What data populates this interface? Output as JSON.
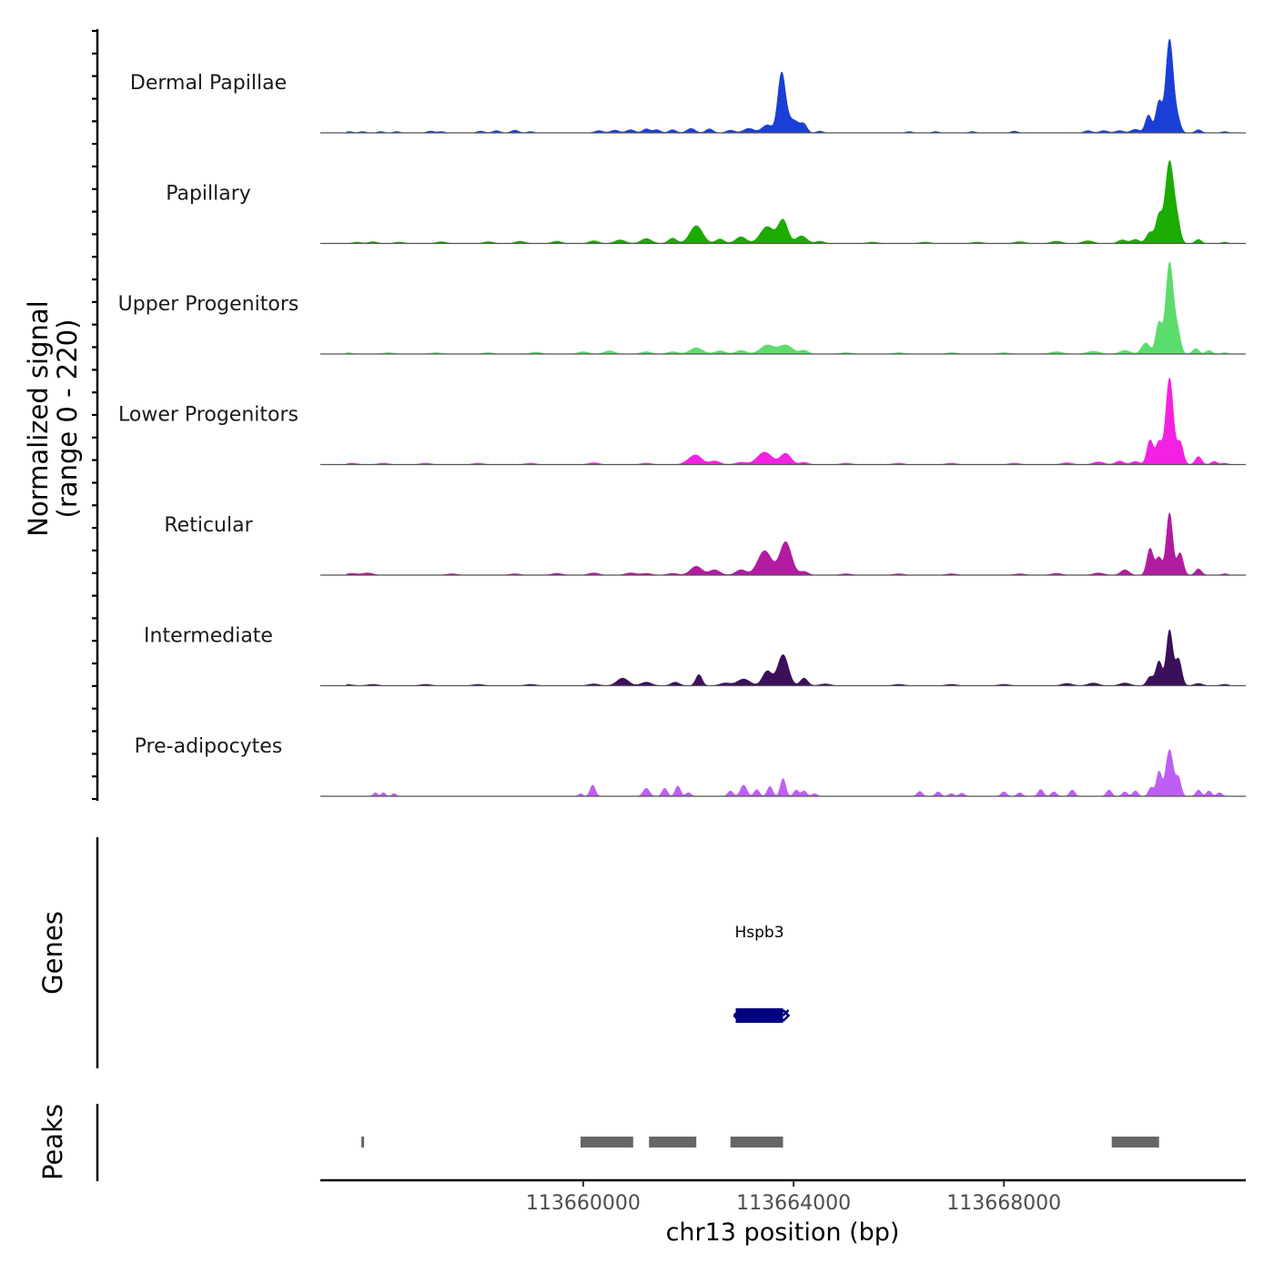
{
  "chart_data": {
    "type": "area",
    "chromosome": "chr13",
    "xlabel": "chr13 position (bp)",
    "xlim": [
      113655000,
      113672600
    ],
    "x_ticks": [
      113660000,
      113664000,
      113668000
    ],
    "x_tick_labels": [
      "113660000",
      "113664000",
      "113668000"
    ],
    "ylabel_line1": "Normalized signal",
    "ylabel_line2": "(range 0 - 220)",
    "ylim": [
      0,
      220
    ],
    "genes_label": "Genes",
    "peaks_label": "Peaks",
    "series": [
      {
        "name": "Dermal Papillae",
        "color": "#1a3fd6",
        "peaks": [
          [
            113655550,
            3,
            60
          ],
          [
            113655800,
            3,
            60
          ],
          [
            113656150,
            3,
            60
          ],
          [
            113656450,
            3,
            60
          ],
          [
            113657100,
            4,
            70
          ],
          [
            113657300,
            3,
            60
          ],
          [
            113658050,
            4,
            70
          ],
          [
            113658350,
            5,
            70
          ],
          [
            113658700,
            6,
            70
          ],
          [
            113659000,
            3,
            60
          ],
          [
            113660300,
            5,
            80
          ],
          [
            113660600,
            6,
            80
          ],
          [
            113660900,
            7,
            80
          ],
          [
            113661200,
            9,
            70
          ],
          [
            113661400,
            7,
            70
          ],
          [
            113661700,
            7,
            70
          ],
          [
            113662050,
            10,
            80
          ],
          [
            113662400,
            9,
            70
          ],
          [
            113662800,
            6,
            80
          ],
          [
            113663150,
            10,
            100
          ],
          [
            113663500,
            18,
            100
          ],
          [
            113663770,
            130,
            70
          ],
          [
            113663900,
            25,
            80
          ],
          [
            113664050,
            22,
            80
          ],
          [
            113664200,
            18,
            60
          ],
          [
            113664500,
            4,
            60
          ],
          [
            113666200,
            3,
            60
          ],
          [
            113666700,
            3,
            60
          ],
          [
            113667400,
            3,
            60
          ],
          [
            113668200,
            4,
            60
          ],
          [
            113669600,
            5,
            70
          ],
          [
            113669900,
            5,
            80
          ],
          [
            113670200,
            5,
            80
          ],
          [
            113670500,
            8,
            80
          ],
          [
            113670750,
            40,
            60
          ],
          [
            113670950,
            70,
            60
          ],
          [
            113671150,
            210,
            70
          ],
          [
            113671300,
            30,
            60
          ],
          [
            113671700,
            7,
            60
          ],
          [
            113672200,
            3,
            60
          ]
        ]
      },
      {
        "name": "Papillary",
        "color": "#1cab00",
        "peaks": [
          [
            113655700,
            3,
            80
          ],
          [
            113656000,
            4,
            80
          ],
          [
            113656500,
            3,
            90
          ],
          [
            113657300,
            4,
            90
          ],
          [
            113658200,
            4,
            90
          ],
          [
            113658800,
            5,
            90
          ],
          [
            113659500,
            5,
            90
          ],
          [
            113660200,
            6,
            90
          ],
          [
            113660700,
            8,
            100
          ],
          [
            113661200,
            11,
            100
          ],
          [
            113661700,
            12,
            80
          ],
          [
            113662150,
            40,
            120
          ],
          [
            113662600,
            10,
            80
          ],
          [
            113663000,
            15,
            100
          ],
          [
            113663500,
            38,
            130
          ],
          [
            113663800,
            52,
            90
          ],
          [
            113664150,
            17,
            100
          ],
          [
            113664500,
            5,
            80
          ],
          [
            113665500,
            3,
            100
          ],
          [
            113666500,
            3,
            100
          ],
          [
            113667500,
            3,
            100
          ],
          [
            113668300,
            4,
            100
          ],
          [
            113669000,
            5,
            100
          ],
          [
            113669600,
            6,
            100
          ],
          [
            113670250,
            8,
            80
          ],
          [
            113670500,
            9,
            80
          ],
          [
            113670780,
            25,
            70
          ],
          [
            113670950,
            60,
            60
          ],
          [
            113671150,
            185,
            80
          ],
          [
            113671300,
            40,
            60
          ],
          [
            113671700,
            9,
            60
          ],
          [
            113672200,
            3,
            60
          ]
        ]
      },
      {
        "name": "Upper Progenitors",
        "color": "#5ddc6e",
        "peaks": [
          [
            113655500,
            3,
            100
          ],
          [
            113656300,
            3,
            100
          ],
          [
            113657200,
            3,
            100
          ],
          [
            113658200,
            3,
            100
          ],
          [
            113659100,
            4,
            100
          ],
          [
            113660000,
            5,
            100
          ],
          [
            113660500,
            7,
            100
          ],
          [
            113661200,
            5,
            100
          ],
          [
            113661700,
            5,
            100
          ],
          [
            113662150,
            14,
            120
          ],
          [
            113662600,
            7,
            100
          ],
          [
            113663000,
            8,
            100
          ],
          [
            113663500,
            20,
            130
          ],
          [
            113663850,
            20,
            130
          ],
          [
            113664200,
            8,
            80
          ],
          [
            113665000,
            3,
            100
          ],
          [
            113666000,
            3,
            100
          ],
          [
            113667000,
            3,
            100
          ],
          [
            113668000,
            3,
            100
          ],
          [
            113669000,
            5,
            120
          ],
          [
            113669700,
            6,
            120
          ],
          [
            113670300,
            8,
            100
          ],
          [
            113670700,
            25,
            80
          ],
          [
            113670950,
            70,
            60
          ],
          [
            113671150,
            205,
            70
          ],
          [
            113671300,
            50,
            60
          ],
          [
            113671650,
            12,
            60
          ],
          [
            113671900,
            8,
            60
          ],
          [
            113672200,
            3,
            60
          ]
        ]
      },
      {
        "name": "Lower Progenitors",
        "color": "#f421e3",
        "peaks": [
          [
            113655600,
            3,
            100
          ],
          [
            113656200,
            3,
            100
          ],
          [
            113657000,
            3,
            100
          ],
          [
            113658000,
            3,
            100
          ],
          [
            113659000,
            3,
            100
          ],
          [
            113660200,
            4,
            100
          ],
          [
            113661200,
            3,
            100
          ],
          [
            113662000,
            5,
            100
          ],
          [
            113662150,
            20,
            110
          ],
          [
            113662500,
            8,
            100
          ],
          [
            113663000,
            5,
            100
          ],
          [
            113663450,
            28,
            140
          ],
          [
            113663850,
            25,
            100
          ],
          [
            113664200,
            5,
            80
          ],
          [
            113665000,
            3,
            100
          ],
          [
            113666000,
            3,
            100
          ],
          [
            113667000,
            3,
            100
          ],
          [
            113668200,
            3,
            100
          ],
          [
            113669200,
            4,
            100
          ],
          [
            113669800,
            6,
            100
          ],
          [
            113670200,
            8,
            80
          ],
          [
            113670500,
            7,
            80
          ],
          [
            113670780,
            55,
            60
          ],
          [
            113670950,
            50,
            60
          ],
          [
            113671150,
            195,
            70
          ],
          [
            113671350,
            50,
            60
          ],
          [
            113671700,
            18,
            60
          ],
          [
            113672000,
            7,
            60
          ],
          [
            113672200,
            3,
            60
          ]
        ]
      },
      {
        "name": "Reticular",
        "color": "#b21ba0",
        "peaks": [
          [
            113655600,
            4,
            100
          ],
          [
            113655900,
            5,
            100
          ],
          [
            113657500,
            3,
            100
          ],
          [
            113658700,
            3,
            100
          ],
          [
            113659500,
            4,
            100
          ],
          [
            113660200,
            5,
            100
          ],
          [
            113660900,
            5,
            100
          ],
          [
            113661200,
            4,
            100
          ],
          [
            113661700,
            4,
            100
          ],
          [
            113662150,
            20,
            110
          ],
          [
            113662500,
            12,
            100
          ],
          [
            113663000,
            12,
            100
          ],
          [
            113663450,
            55,
            130
          ],
          [
            113663850,
            75,
            110
          ],
          [
            113664200,
            8,
            80
          ],
          [
            113665000,
            3,
            100
          ],
          [
            113666000,
            3,
            100
          ],
          [
            113667000,
            3,
            100
          ],
          [
            113668300,
            3,
            100
          ],
          [
            113669000,
            4,
            100
          ],
          [
            113669800,
            5,
            100
          ],
          [
            113670300,
            12,
            80
          ],
          [
            113670780,
            60,
            60
          ],
          [
            113670950,
            40,
            60
          ],
          [
            113671150,
            140,
            60
          ],
          [
            113671350,
            50,
            60
          ],
          [
            113671700,
            14,
            60
          ],
          [
            113672200,
            3,
            60
          ]
        ]
      },
      {
        "name": "Intermediate",
        "color": "#3c0f5a",
        "peaks": [
          [
            113655500,
            3,
            100
          ],
          [
            113656000,
            3,
            100
          ],
          [
            113657000,
            3,
            100
          ],
          [
            113658000,
            3,
            100
          ],
          [
            113659000,
            3,
            100
          ],
          [
            113660200,
            4,
            100
          ],
          [
            113660750,
            17,
            110
          ],
          [
            113661200,
            8,
            100
          ],
          [
            113661750,
            8,
            80
          ],
          [
            113662200,
            25,
            60
          ],
          [
            113662700,
            6,
            100
          ],
          [
            113663050,
            15,
            120
          ],
          [
            113663500,
            33,
            90
          ],
          [
            113663800,
            70,
            100
          ],
          [
            113664200,
            17,
            70
          ],
          [
            113664600,
            4,
            100
          ],
          [
            113666000,
            3,
            100
          ],
          [
            113667000,
            3,
            100
          ],
          [
            113668000,
            3,
            100
          ],
          [
            113669200,
            5,
            100
          ],
          [
            113669700,
            6,
            100
          ],
          [
            113670300,
            6,
            100
          ],
          [
            113670780,
            20,
            60
          ],
          [
            113670950,
            55,
            60
          ],
          [
            113671150,
            125,
            60
          ],
          [
            113671320,
            60,
            60
          ],
          [
            113671700,
            5,
            80
          ],
          [
            113672200,
            3,
            80
          ]
        ]
      },
      {
        "name": "Pre-adipocytes",
        "color": "#bf5ef5",
        "peaks": [
          [
            113656050,
            8,
            40
          ],
          [
            113656200,
            8,
            40
          ],
          [
            113656400,
            6,
            40
          ],
          [
            113659950,
            6,
            40
          ],
          [
            113660180,
            25,
            50
          ],
          [
            113661200,
            18,
            60
          ],
          [
            113661550,
            18,
            50
          ],
          [
            113661800,
            23,
            50
          ],
          [
            113662000,
            8,
            50
          ],
          [
            113662800,
            12,
            50
          ],
          [
            113663050,
            25,
            60
          ],
          [
            113663300,
            15,
            50
          ],
          [
            113663550,
            22,
            50
          ],
          [
            113663800,
            40,
            50
          ],
          [
            113664050,
            14,
            50
          ],
          [
            113664200,
            12,
            50
          ],
          [
            113664400,
            6,
            50
          ],
          [
            113666400,
            11,
            50
          ],
          [
            113666750,
            10,
            50
          ],
          [
            113667000,
            6,
            50
          ],
          [
            113667200,
            7,
            50
          ],
          [
            113668000,
            10,
            50
          ],
          [
            113668300,
            8,
            50
          ],
          [
            113668700,
            15,
            50
          ],
          [
            113668950,
            10,
            50
          ],
          [
            113669300,
            14,
            50
          ],
          [
            113670000,
            14,
            50
          ],
          [
            113670300,
            10,
            50
          ],
          [
            113670500,
            12,
            50
          ],
          [
            113670800,
            20,
            50
          ],
          [
            113670950,
            55,
            50
          ],
          [
            113671150,
            105,
            70
          ],
          [
            113671320,
            40,
            50
          ],
          [
            113671700,
            14,
            50
          ],
          [
            113671900,
            12,
            50
          ],
          [
            113672100,
            8,
            50
          ]
        ]
      }
    ],
    "genes": [
      {
        "name": "Hspb3",
        "start": 113662900,
        "end": 113663800,
        "strand": "+",
        "color": "#00007f"
      }
    ],
    "peak_regions": [
      [
        113655780,
        113655830
      ],
      [
        113659950,
        113660950
      ],
      [
        113661250,
        113662150
      ],
      [
        113662800,
        113663800
      ],
      [
        113670050,
        113670950
      ]
    ]
  }
}
